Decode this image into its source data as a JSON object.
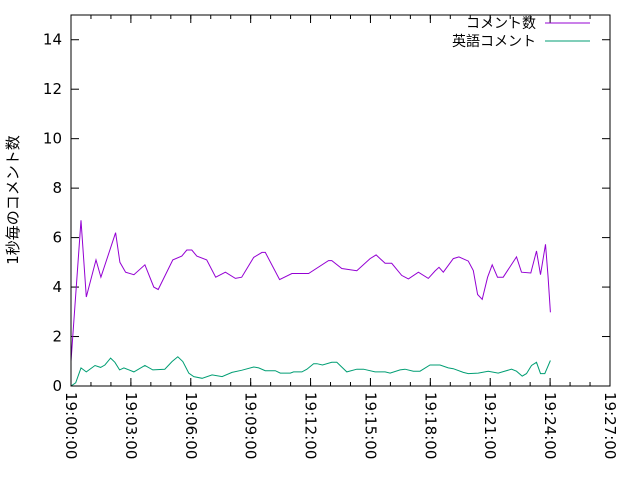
{
  "chart_data": {
    "type": "line",
    "title": "",
    "xlabel": "",
    "ylabel": "1秒毎のコメント数",
    "xlim": [
      "19:00:00",
      "19:27:00"
    ],
    "ylim": [
      0,
      15
    ],
    "x_ticks": [
      "19:00:00",
      "19:03:00",
      "19:06:00",
      "19:09:00",
      "19:12:00",
      "19:15:00",
      "19:18:00",
      "19:21:00",
      "19:24:00",
      "19:27:00"
    ],
    "y_ticks": [
      0,
      2,
      4,
      6,
      8,
      10,
      12,
      14
    ],
    "grid": false,
    "legend": "top-right",
    "series": [
      {
        "name": "コメント数",
        "color": "#9400d3",
        "points": [
          [
            "19:00:00",
            1.0
          ],
          [
            "19:00:30",
            6.7
          ],
          [
            "19:00:46",
            3.6
          ],
          [
            "19:01:15",
            5.1
          ],
          [
            "19:01:30",
            4.4
          ],
          [
            "19:02:14",
            6.2
          ],
          [
            "19:02:27",
            5.0
          ],
          [
            "19:02:44",
            4.6
          ],
          [
            "19:03:09",
            4.5
          ],
          [
            "19:03:42",
            4.9
          ],
          [
            "19:04:09",
            4.0
          ],
          [
            "19:04:22",
            3.9
          ],
          [
            "19:05:06",
            5.1
          ],
          [
            "19:05:33",
            5.25
          ],
          [
            "19:05:48",
            5.5
          ],
          [
            "19:06:03",
            5.5
          ],
          [
            "19:06:18",
            5.25
          ],
          [
            "19:06:48",
            5.1
          ],
          [
            "19:07:15",
            4.4
          ],
          [
            "19:07:44",
            4.6
          ],
          [
            "19:08:14",
            4.35
          ],
          [
            "19:08:33",
            4.4
          ],
          [
            "19:09:09",
            5.2
          ],
          [
            "19:09:34",
            5.4
          ],
          [
            "19:09:44",
            5.4
          ],
          [
            "19:10:27",
            4.3
          ],
          [
            "19:11:04",
            4.55
          ],
          [
            "19:11:54",
            4.55
          ],
          [
            "19:12:54",
            5.07
          ],
          [
            "19:13:04",
            5.07
          ],
          [
            "19:13:34",
            4.75
          ],
          [
            "19:14:19",
            4.66
          ],
          [
            "19:14:59",
            5.15
          ],
          [
            "19:15:17",
            5.3
          ],
          [
            "19:15:44",
            4.96
          ],
          [
            "19:16:04",
            4.96
          ],
          [
            "19:16:34",
            4.47
          ],
          [
            "19:16:54",
            4.33
          ],
          [
            "19:17:24",
            4.6
          ],
          [
            "19:17:54",
            4.35
          ],
          [
            "19:18:14",
            4.65
          ],
          [
            "19:18:26",
            4.8
          ],
          [
            "19:18:39",
            4.6
          ],
          [
            "19:19:09",
            5.15
          ],
          [
            "19:19:26",
            5.22
          ],
          [
            "19:19:54",
            5.05
          ],
          [
            "19:20:09",
            4.67
          ],
          [
            "19:20:22",
            3.7
          ],
          [
            "19:20:36",
            3.5
          ],
          [
            "19:20:52",
            4.4
          ],
          [
            "19:21:06",
            4.9
          ],
          [
            "19:21:22",
            4.4
          ],
          [
            "19:21:39",
            4.4
          ],
          [
            "19:22:19",
            5.22
          ],
          [
            "19:22:34",
            4.6
          ],
          [
            "19:23:02",
            4.57
          ],
          [
            "19:23:19",
            5.46
          ],
          [
            "19:23:31",
            4.5
          ],
          [
            "19:23:46",
            5.73
          ],
          [
            "19:23:54",
            4.4
          ],
          [
            "19:24:01",
            2.98
          ]
        ]
      },
      {
        "name": "英語コメント",
        "color": "#009e73",
        "points": [
          [
            "19:00:00",
            0.0
          ],
          [
            "19:00:14",
            0.13
          ],
          [
            "19:00:30",
            0.73
          ],
          [
            "19:00:46",
            0.57
          ],
          [
            "19:01:12",
            0.83
          ],
          [
            "19:01:29",
            0.75
          ],
          [
            "19:01:42",
            0.85
          ],
          [
            "19:01:59",
            1.13
          ],
          [
            "19:02:12",
            0.96
          ],
          [
            "19:02:26",
            0.65
          ],
          [
            "19:02:39",
            0.73
          ],
          [
            "19:03:09",
            0.57
          ],
          [
            "19:03:42",
            0.83
          ],
          [
            "19:04:06",
            0.65
          ],
          [
            "19:04:42",
            0.68
          ],
          [
            "19:05:04",
            0.99
          ],
          [
            "19:05:21",
            1.18
          ],
          [
            "19:05:36",
            0.99
          ],
          [
            "19:05:54",
            0.52
          ],
          [
            "19:06:09",
            0.38
          ],
          [
            "19:06:34",
            0.31
          ],
          [
            "19:07:04",
            0.45
          ],
          [
            "19:07:34",
            0.38
          ],
          [
            "19:08:04",
            0.55
          ],
          [
            "19:08:34",
            0.64
          ],
          [
            "19:09:09",
            0.77
          ],
          [
            "19:09:24",
            0.73
          ],
          [
            "19:09:44",
            0.62
          ],
          [
            "19:10:14",
            0.62
          ],
          [
            "19:10:29",
            0.52
          ],
          [
            "19:10:59",
            0.52
          ],
          [
            "19:11:09",
            0.57
          ],
          [
            "19:11:34",
            0.57
          ],
          [
            "19:11:49",
            0.68
          ],
          [
            "19:12:09",
            0.9
          ],
          [
            "19:12:19",
            0.9
          ],
          [
            "19:12:36",
            0.85
          ],
          [
            "19:13:04",
            0.96
          ],
          [
            "19:13:19",
            0.96
          ],
          [
            "19:13:49",
            0.57
          ],
          [
            "19:14:19",
            0.68
          ],
          [
            "19:14:39",
            0.68
          ],
          [
            "19:15:14",
            0.57
          ],
          [
            "19:15:44",
            0.57
          ],
          [
            "19:15:59",
            0.52
          ],
          [
            "19:16:29",
            0.65
          ],
          [
            "19:16:44",
            0.68
          ],
          [
            "19:17:09",
            0.6
          ],
          [
            "19:17:29",
            0.6
          ],
          [
            "19:17:59",
            0.85
          ],
          [
            "19:18:29",
            0.85
          ],
          [
            "19:18:54",
            0.73
          ],
          [
            "19:19:09",
            0.7
          ],
          [
            "19:19:39",
            0.55
          ],
          [
            "19:19:54",
            0.5
          ],
          [
            "19:20:24",
            0.52
          ],
          [
            "19:20:54",
            0.6
          ],
          [
            "19:21:24",
            0.52
          ],
          [
            "19:22:04",
            0.68
          ],
          [
            "19:22:19",
            0.6
          ],
          [
            "19:22:36",
            0.4
          ],
          [
            "19:22:49",
            0.5
          ],
          [
            "19:23:04",
            0.83
          ],
          [
            "19:23:19",
            0.96
          ],
          [
            "19:23:31",
            0.5
          ],
          [
            "19:23:44",
            0.5
          ],
          [
            "19:24:01",
            1.03
          ]
        ]
      }
    ]
  }
}
